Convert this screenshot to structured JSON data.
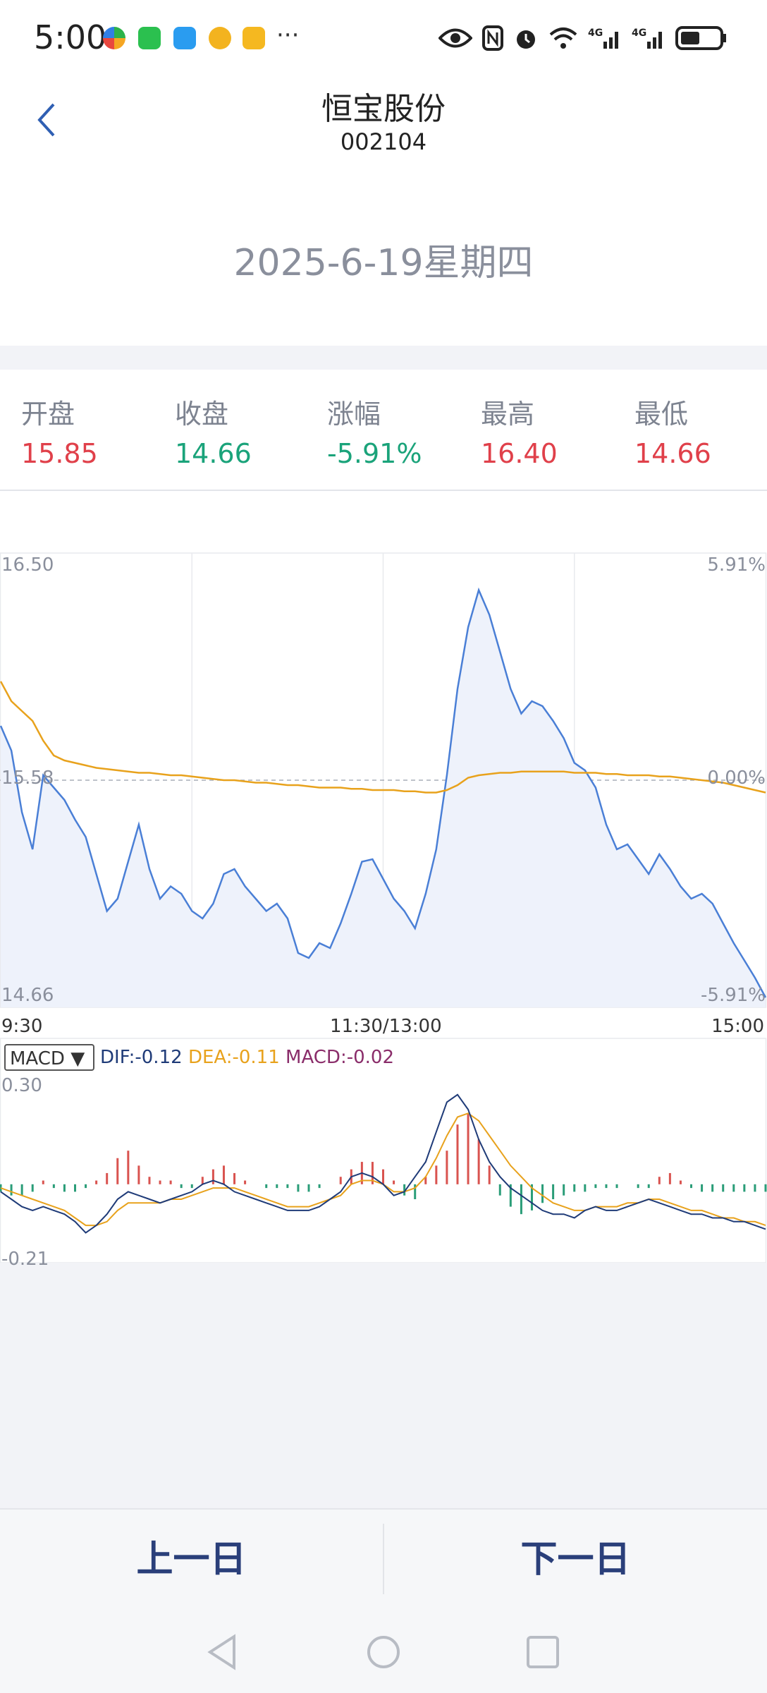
{
  "status_bar": {
    "time": "5:00",
    "more": "···"
  },
  "header": {
    "title": "恒宝股份",
    "code": "002104",
    "date": "2025-6-19星期四"
  },
  "stats": [
    {
      "label": "开盘",
      "value": "15.85",
      "color": "#e0404a"
    },
    {
      "label": "收盘",
      "value": "14.66",
      "color": "#1aa37a"
    },
    {
      "label": "涨幅",
      "value": "-5.91%",
      "color": "#1aa37a"
    },
    {
      "label": "最高",
      "value": "16.40",
      "color": "#e0404a"
    },
    {
      "label": "最低",
      "value": "14.66",
      "color": "#e0404a"
    }
  ],
  "chart": {
    "price_top": "16.50",
    "price_mid": "15.58",
    "price_bottom": "14.66",
    "pct_top": "5.91%",
    "pct_mid": "0.00%",
    "pct_bottom": "-5.91%",
    "time_start": "9:30",
    "time_mid": "11:30/13:00",
    "time_end": "15:00",
    "macd_select": "MACD ▼",
    "dif": "DIF:-0.12",
    "dea": "DEA:-0.11",
    "macd": "MACD:-0.02",
    "macd_top": "0.30",
    "macd_bottom": "-0.21"
  },
  "chart_data": {
    "type": "line",
    "ylim": [
      14.66,
      16.5
    ],
    "reference_price": 15.58,
    "series": [],
    "price": [
      15.8,
      15.7,
      15.45,
      15.3,
      15.6,
      15.55,
      15.5,
      15.42,
      15.35,
      15.2,
      15.05,
      15.1,
      15.25,
      15.4,
      15.22,
      15.1,
      15.15,
      15.12,
      15.05,
      15.02,
      15.08,
      15.2,
      15.22,
      15.15,
      15.1,
      15.05,
      15.08,
      15.02,
      14.88,
      14.86,
      14.92,
      14.9,
      15.0,
      15.12,
      15.25,
      15.26,
      15.18,
      15.1,
      15.05,
      14.98,
      15.12,
      15.3,
      15.6,
      15.95,
      16.2,
      16.35,
      16.25,
      16.1,
      15.95,
      15.85,
      15.9,
      15.88,
      15.82,
      15.75,
      15.65,
      15.62,
      15.55,
      15.4,
      15.3,
      15.32,
      15.26,
      15.2,
      15.28,
      15.22,
      15.15,
      15.1,
      15.12,
      15.08,
      15.0,
      14.92,
      14.85,
      14.78,
      14.7
    ],
    "avg": [
      15.98,
      15.9,
      15.86,
      15.82,
      15.74,
      15.68,
      15.66,
      15.65,
      15.64,
      15.63,
      15.625,
      15.62,
      15.615,
      15.61,
      15.61,
      15.605,
      15.6,
      15.6,
      15.595,
      15.59,
      15.585,
      15.58,
      15.58,
      15.575,
      15.57,
      15.57,
      15.565,
      15.56,
      15.56,
      15.555,
      15.55,
      15.55,
      15.55,
      15.545,
      15.545,
      15.54,
      15.54,
      15.54,
      15.535,
      15.535,
      15.53,
      15.53,
      15.54,
      15.56,
      15.59,
      15.6,
      15.605,
      15.61,
      15.61,
      15.615,
      15.615,
      15.615,
      15.615,
      15.615,
      15.61,
      15.61,
      15.61,
      15.605,
      15.605,
      15.6,
      15.6,
      15.6,
      15.595,
      15.595,
      15.59,
      15.585,
      15.58,
      15.575,
      15.57,
      15.56,
      15.55,
      15.54,
      15.53
    ],
    "macd_hist": [
      -0.02,
      -0.03,
      -0.03,
      -0.02,
      0.01,
      -0.01,
      -0.02,
      -0.02,
      -0.01,
      0.01,
      0.03,
      0.07,
      0.09,
      0.05,
      0.02,
      0.01,
      0.01,
      -0.01,
      -0.01,
      0.02,
      0.04,
      0.05,
      0.03,
      0.01,
      0.0,
      -0.01,
      -0.01,
      -0.01,
      -0.02,
      -0.02,
      -0.01,
      0.0,
      0.02,
      0.04,
      0.06,
      0.06,
      0.04,
      0.01,
      -0.03,
      -0.04,
      0.02,
      0.05,
      0.09,
      0.16,
      0.19,
      0.12,
      0.05,
      -0.03,
      -0.06,
      -0.08,
      -0.07,
      -0.05,
      -0.04,
      -0.03,
      -0.02,
      -0.02,
      -0.01,
      -0.01,
      -0.01,
      0.0,
      -0.01,
      -0.01,
      0.02,
      0.03,
      0.01,
      -0.01,
      -0.02,
      -0.02,
      -0.02,
      -0.02,
      -0.02,
      -0.02,
      -0.02
    ],
    "dif": [
      -0.02,
      -0.04,
      -0.06,
      -0.07,
      -0.06,
      -0.07,
      -0.08,
      -0.1,
      -0.13,
      -0.11,
      -0.08,
      -0.04,
      -0.02,
      -0.03,
      -0.04,
      -0.05,
      -0.04,
      -0.03,
      -0.02,
      0.0,
      0.01,
      0.0,
      -0.02,
      -0.03,
      -0.04,
      -0.05,
      -0.06,
      -0.07,
      -0.07,
      -0.07,
      -0.06,
      -0.04,
      -0.02,
      0.02,
      0.03,
      0.02,
      0.0,
      -0.03,
      -0.02,
      0.02,
      0.06,
      0.14,
      0.22,
      0.24,
      0.2,
      0.12,
      0.06,
      0.02,
      -0.01,
      -0.03,
      -0.05,
      -0.07,
      -0.08,
      -0.08,
      -0.09,
      -0.07,
      -0.06,
      -0.07,
      -0.07,
      -0.06,
      -0.05,
      -0.04,
      -0.05,
      -0.06,
      -0.07,
      -0.08,
      -0.08,
      -0.09,
      -0.09,
      -0.1,
      -0.1,
      -0.11,
      -0.12
    ],
    "dea": [
      -0.01,
      -0.02,
      -0.03,
      -0.04,
      -0.05,
      -0.06,
      -0.07,
      -0.09,
      -0.11,
      -0.11,
      -0.1,
      -0.07,
      -0.05,
      -0.05,
      -0.05,
      -0.05,
      -0.04,
      -0.04,
      -0.03,
      -0.02,
      -0.01,
      -0.01,
      -0.01,
      -0.02,
      -0.03,
      -0.04,
      -0.05,
      -0.06,
      -0.06,
      -0.06,
      -0.05,
      -0.04,
      -0.03,
      0.0,
      0.01,
      0.01,
      0.0,
      -0.02,
      -0.02,
      -0.01,
      0.02,
      0.07,
      0.13,
      0.18,
      0.19,
      0.17,
      0.13,
      0.09,
      0.05,
      0.02,
      -0.01,
      -0.03,
      -0.05,
      -0.06,
      -0.07,
      -0.07,
      -0.06,
      -0.06,
      -0.06,
      -0.05,
      -0.05,
      -0.04,
      -0.04,
      -0.05,
      -0.06,
      -0.07,
      -0.07,
      -0.08,
      -0.09,
      -0.09,
      -0.1,
      -0.1,
      -0.11
    ],
    "macd_ylim": [
      -0.21,
      0.3
    ]
  }
}
